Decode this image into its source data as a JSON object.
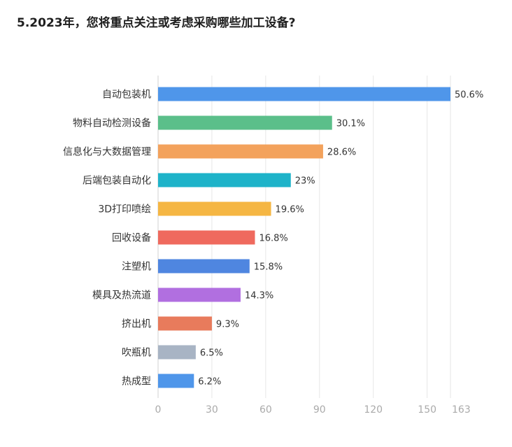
{
  "chart_data": {
    "type": "bar",
    "orientation": "horizontal",
    "title": "5.2023年，您将重点关注或考虑采购哪些加工设备?",
    "categories": [
      "自动包装机",
      "物料自动检测设备",
      "信息化与大数据管理",
      "后端包装自动化",
      "3D打印喷绘",
      "回收设备",
      "注塑机",
      "模具及热流道",
      "挤出机",
      "吹瓶机",
      "热成型"
    ],
    "values": [
      163,
      97,
      92,
      74,
      63,
      54,
      51,
      46,
      30,
      21,
      20
    ],
    "labels": [
      "50.6%",
      "30.1%",
      "28.6%",
      "23%",
      "19.6%",
      "16.8%",
      "15.8%",
      "14.3%",
      "9.3%",
      "6.5%",
      "6.2%"
    ],
    "colors": [
      "#4f96ea",
      "#5bbf8a",
      "#f3a25c",
      "#1eb3c9",
      "#f5b643",
      "#ef6a5e",
      "#4f86e0",
      "#b16fe0",
      "#e87b5c",
      "#a8b4c4",
      "#4f96ea"
    ],
    "xlim": [
      0,
      163
    ],
    "xticks": [
      0,
      30,
      60,
      90,
      120,
      150,
      163
    ],
    "xlabel": "",
    "ylabel": "",
    "grid": true
  }
}
